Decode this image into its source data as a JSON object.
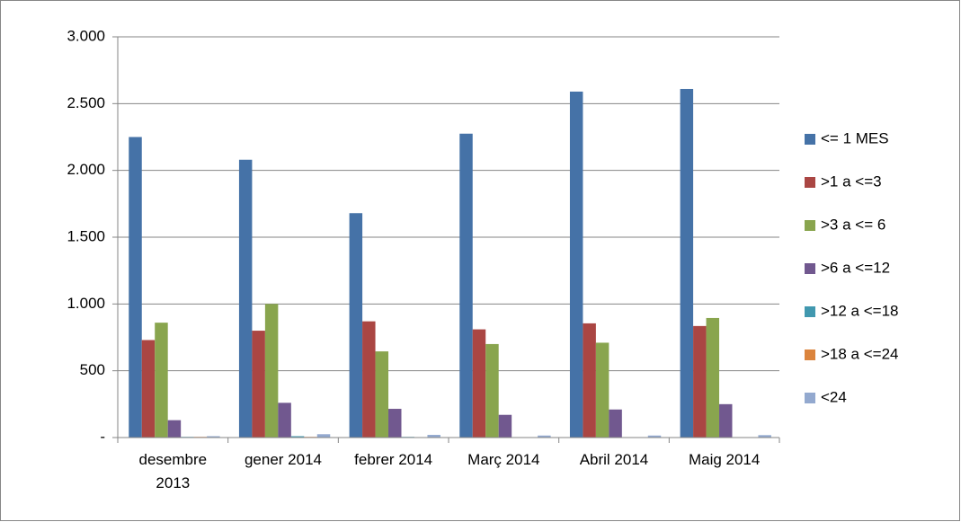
{
  "chart_data": {
    "type": "bar",
    "categories": [
      "desembre 2013",
      "gener 2014",
      "febrer 2014",
      "Març 2014",
      "Abril 2014",
      "Maig 2014"
    ],
    "series": [
      {
        "name": "<= 1 MES",
        "color": "#4572a7",
        "values": [
          2250,
          2080,
          1680,
          2275,
          2590,
          2610
        ]
      },
      {
        "name": ">1 a <=3",
        "color": "#aa4643",
        "values": [
          730,
          800,
          870,
          810,
          855,
          835
        ]
      },
      {
        "name": ">3 a <= 6",
        "color": "#89a54e",
        "values": [
          860,
          1000,
          645,
          700,
          710,
          895
        ]
      },
      {
        "name": ">6 a <=12",
        "color": "#71588f",
        "values": [
          130,
          260,
          215,
          170,
          210,
          250
        ]
      },
      {
        "name": ">12 a <=18",
        "color": "#4198af",
        "values": [
          5,
          10,
          5,
          3,
          3,
          3
        ]
      },
      {
        "name": ">18  a <=24",
        "color": "#db843d",
        "values": [
          5,
          5,
          3,
          3,
          3,
          3
        ]
      },
      {
        "name": "<24",
        "color": "#93a9cf",
        "values": [
          10,
          25,
          20,
          15,
          15,
          18
        ]
      }
    ],
    "ylim": [
      0,
      3000
    ],
    "yticks": [
      {
        "value": 0,
        "label": "-"
      },
      500,
      {
        "value": 1000,
        "label": "1.000"
      },
      {
        "value": 1500,
        "label": "1.500"
      },
      {
        "value": 2000,
        "label": "2.000"
      },
      {
        "value": 2500,
        "label": "2.500"
      },
      {
        "value": 3000,
        "label": "3.000"
      }
    ],
    "grid": true,
    "legend": "right"
  }
}
